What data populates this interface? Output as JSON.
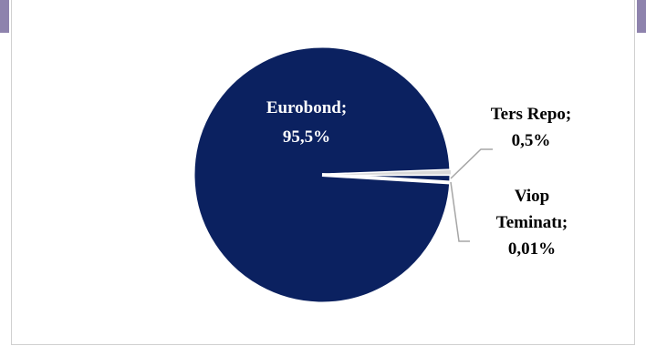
{
  "chart_data": {
    "type": "pie",
    "title": "",
    "slices": [
      {
        "label": "Eurobond;",
        "value_text": "95,5%",
        "value": 95.5,
        "color": "#0b2160",
        "label_color": "#ffffff"
      },
      {
        "label": "Ters Repo;",
        "value_text": "0,5%",
        "value": 0.5,
        "color": "#d9d9d9",
        "label_color": "#000000"
      },
      {
        "label": "Viop Teminatı;",
        "value_text": "0,01%",
        "value": 0.01,
        "color": "#bfbfbf",
        "label_color": "#000000"
      }
    ],
    "colors": {
      "accent": "#8e83ad",
      "pie_main": "#0b2160",
      "leader_line": "#a6a6a6"
    }
  }
}
